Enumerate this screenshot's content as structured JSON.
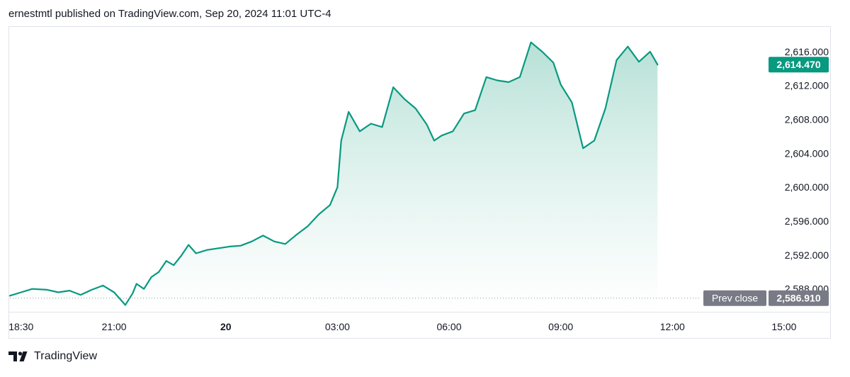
{
  "header": {
    "published_text": "ernestmtl published on TradingView.com, Sep 20, 2024 11:01 UTC-4"
  },
  "footer": {
    "brand": "TradingView"
  },
  "colors": {
    "line": "#089981",
    "fill_top": "#b2dfd4",
    "fill_bottom": "#ffffff",
    "badge_last": "#089981",
    "badge_prev": "#787b86",
    "axis_text": "#131722",
    "border": "#e0e3eb",
    "prev_line": "#9598a1"
  },
  "chart_data": {
    "type": "area",
    "title": "",
    "xlabel": "",
    "ylabel": "",
    "x_ticks": [
      "18:30",
      "21:00",
      "20",
      "03:00",
      "06:00",
      "09:00",
      "12:00",
      "15:00"
    ],
    "x_tick_hours": [
      18.5,
      21,
      24,
      27,
      30,
      33,
      36,
      39
    ],
    "x_range_hours": [
      18.2,
      40.2
    ],
    "y_ticks": [
      "2,588.000",
      "2,592.000",
      "2,596.000",
      "2,600.000",
      "2,604.000",
      "2,608.000",
      "2,612.000",
      "2,616.000"
    ],
    "y_tick_values": [
      2588,
      2592,
      2596,
      2600,
      2604,
      2608,
      2612,
      2616
    ],
    "ylim": [
      2585.3,
      2619.0
    ],
    "grid": false,
    "last_value": 2614.47,
    "last_value_label": "2,614.470",
    "prev_close": 2586.91,
    "prev_close_badge": "Prev close",
    "prev_close_label": "2,586.910",
    "series": [
      {
        "x": [
          18.2,
          18.5,
          18.8,
          19.2,
          19.5,
          19.8,
          20.1,
          20.4,
          20.7,
          21.0,
          21.3,
          21.5,
          21.6,
          21.8,
          22.0,
          22.2,
          22.4,
          22.6,
          22.8,
          23.0,
          23.2,
          23.5,
          23.8,
          24.1,
          24.4,
          24.7,
          25.0,
          25.3,
          25.6,
          25.9,
          26.2,
          26.5,
          26.8,
          27.0,
          27.1,
          27.3,
          27.6,
          27.9,
          28.2,
          28.5,
          28.8,
          29.1,
          29.4,
          29.6,
          29.8,
          30.1,
          30.4,
          30.7,
          31.0,
          31.3,
          31.6,
          31.9,
          32.2,
          32.5,
          32.8,
          33.0,
          33.3,
          33.6,
          33.9,
          34.2,
          34.5,
          34.8,
          35.1,
          35.4,
          35.6
        ],
        "values": [
          2587.2,
          2587.6,
          2588.0,
          2587.9,
          2587.6,
          2587.8,
          2587.3,
          2587.9,
          2588.4,
          2587.6,
          2586.1,
          2587.5,
          2588.6,
          2588.0,
          2589.4,
          2590.0,
          2591.3,
          2590.8,
          2591.9,
          2593.2,
          2592.2,
          2592.6,
          2592.8,
          2593.0,
          2593.1,
          2593.6,
          2594.3,
          2593.6,
          2593.3,
          2594.4,
          2595.4,
          2596.8,
          2597.9,
          2600.0,
          2605.5,
          2608.9,
          2606.6,
          2607.5,
          2607.1,
          2611.8,
          2610.4,
          2609.3,
          2607.4,
          2605.5,
          2606.1,
          2606.6,
          2608.7,
          2609.1,
          2613.0,
          2612.6,
          2612.4,
          2613.0,
          2617.1,
          2616.0,
          2614.7,
          2612.1,
          2610.0,
          2604.6,
          2605.5,
          2609.3,
          2615.0,
          2616.6,
          2614.8,
          2616.0,
          2614.47
        ]
      }
    ]
  }
}
